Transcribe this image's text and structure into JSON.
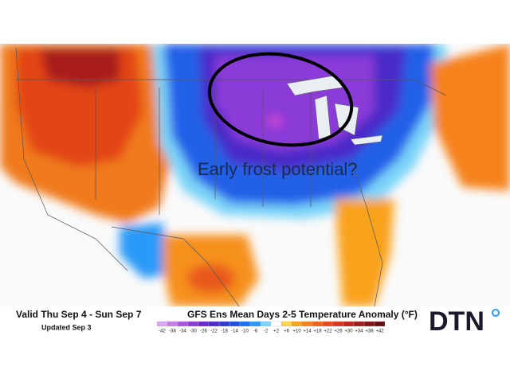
{
  "map": {
    "annotation": "Early frost potential?",
    "valid": "Valid Thu Sep 4 - Sun Sep 7",
    "updated": "Updated Sep 3",
    "title": "GFS Ens Mean Days 2-5 Temperature Anomaly (°F)",
    "logo": "DTN",
    "legend": {
      "labels": [
        "-42",
        "-38",
        "-34",
        "-30",
        "-26",
        "-22",
        "-18",
        "-14",
        "-10",
        "-6",
        "-2",
        "+2",
        "+6",
        "+10",
        "+14",
        "+18",
        "+22",
        "+26",
        "+30",
        "+34",
        "+38",
        "+42"
      ],
      "colors": [
        "#d9a6f0",
        "#c37de8",
        "#a855e0",
        "#8a3ad8",
        "#6a2ad0",
        "#4a2ac8",
        "#2e3ad0",
        "#2050e0",
        "#1a70f0",
        "#2a9af8",
        "#7cd4f8",
        "#ffffff",
        "#fbd34a",
        "#f9a21e",
        "#f6821a",
        "#f06418",
        "#e84a1a",
        "#d8361c",
        "#c0241e",
        "#a01a1c",
        "#801418",
        "#601014"
      ]
    }
  }
}
